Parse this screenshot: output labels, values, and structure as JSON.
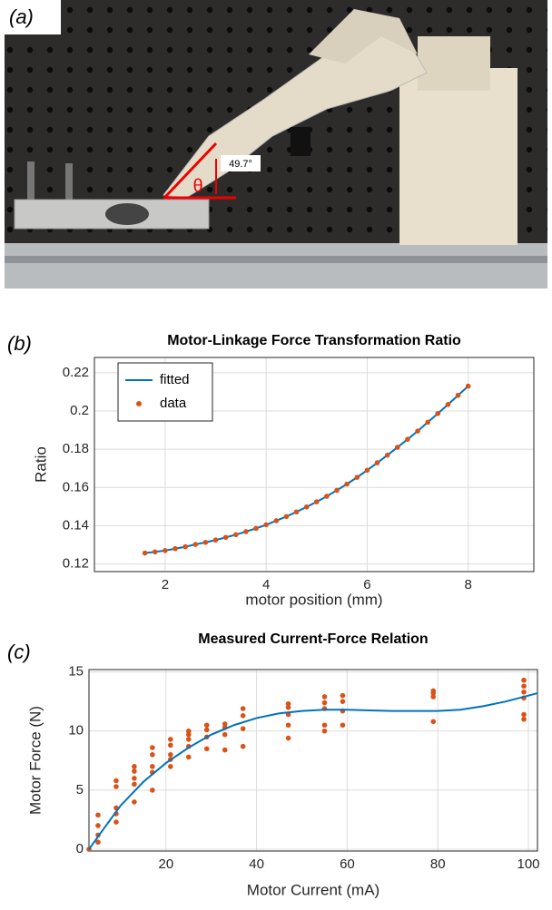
{
  "photo": {
    "panel_label": "(a)",
    "angle_label": "49.7°",
    "angle_symbol": "θ"
  },
  "chart_data": [
    {
      "type": "line",
      "panel_label": "(b)",
      "title": "Motor-Linkage Force Transformation Ratio",
      "x_label": "motor position (mm)",
      "y_label": "Ratio",
      "xlim": [
        0.6,
        9.3
      ],
      "ylim": [
        0.116,
        0.228
      ],
      "xticks": [
        2,
        4,
        6,
        8
      ],
      "yticks": [
        0.12,
        0.14,
        0.16,
        0.18,
        0.2,
        0.22
      ],
      "grid": true,
      "legend": "upper left",
      "series": [
        {
          "name": "fitted",
          "color": "#0072bd",
          "mode": "line",
          "x": [
            1.6,
            1.8,
            2.0,
            2.2,
            2.4,
            2.6,
            2.8,
            3.0,
            3.2,
            3.4,
            3.6,
            3.8,
            4.0,
            4.2,
            4.4,
            4.6,
            4.8,
            5.0,
            5.2,
            5.4,
            5.6,
            5.8,
            6.0,
            6.2,
            6.4,
            6.6,
            6.8,
            7.0,
            7.2,
            7.4,
            7.6,
            7.8,
            8.0
          ],
          "values": [
            0.1257,
            0.1263,
            0.127,
            0.128,
            0.129,
            0.1302,
            0.1313,
            0.1325,
            0.1339,
            0.1353,
            0.1369,
            0.1386,
            0.1405,
            0.1426,
            0.1448,
            0.1472,
            0.1498,
            0.1525,
            0.1554,
            0.1585,
            0.1618,
            0.1653,
            0.169,
            0.1729,
            0.1769,
            0.181,
            0.1852,
            0.1895,
            0.1941,
            0.1987,
            0.2034,
            0.2082,
            0.213
          ]
        },
        {
          "name": "data",
          "color": "#d95319",
          "mode": "markers",
          "x": [
            1.6,
            1.8,
            2.0,
            2.2,
            2.4,
            2.6,
            2.8,
            3.0,
            3.2,
            3.4,
            3.6,
            3.8,
            4.0,
            4.2,
            4.4,
            4.6,
            4.8,
            5.0,
            5.2,
            5.4,
            5.6,
            5.8,
            6.0,
            6.2,
            6.4,
            6.6,
            6.8,
            7.0,
            7.2,
            7.4,
            7.6,
            7.8,
            8.0
          ],
          "values": [
            0.1257,
            0.1263,
            0.127,
            0.128,
            0.129,
            0.1302,
            0.1313,
            0.1325,
            0.1339,
            0.1353,
            0.1369,
            0.1386,
            0.1405,
            0.1426,
            0.1448,
            0.1472,
            0.1498,
            0.1525,
            0.1554,
            0.1585,
            0.1618,
            0.1653,
            0.169,
            0.1729,
            0.1769,
            0.181,
            0.1852,
            0.1895,
            0.1941,
            0.1987,
            0.2034,
            0.2082,
            0.213
          ]
        }
      ]
    },
    {
      "type": "line",
      "panel_label": "(c)",
      "title": "Measured Current-Force Relation",
      "x_label": "Motor Current (mA)",
      "y_label": "Motor Force (N)",
      "xlim": [
        3,
        102
      ],
      "ylim": [
        -0.15,
        15.2
      ],
      "xticks": [
        20,
        40,
        60,
        80,
        100
      ],
      "yticks": [
        0,
        5,
        10,
        15
      ],
      "grid": true,
      "series": [
        {
          "color": "#d95319",
          "mode": "markers",
          "x": [
            3,
            5,
            5,
            5,
            5,
            9,
            9,
            9,
            9,
            9,
            13,
            13,
            13,
            13,
            13,
            17,
            17,
            17,
            17,
            17,
            21,
            21,
            21,
            21,
            21,
            25,
            25,
            25,
            25,
            25,
            29,
            29,
            29,
            29,
            33,
            33,
            33,
            33,
            37,
            37,
            37,
            37,
            47,
            47,
            47,
            47,
            47,
            55,
            55,
            55,
            55,
            55,
            59,
            59,
            59,
            59,
            79,
            79,
            79,
            79,
            99,
            99,
            99,
            99,
            99,
            99
          ],
          "values": [
            0,
            0.6,
            1.2,
            2.0,
            2.9,
            2.3,
            3.0,
            3.5,
            5.3,
            5.8,
            4.0,
            5.5,
            6.0,
            6.6,
            7.0,
            5.0,
            6.5,
            7.0,
            8.0,
            8.6,
            7.0,
            7.6,
            8.0,
            8.8,
            9.3,
            7.8,
            8.7,
            9.3,
            9.7,
            10.0,
            8.5,
            9.5,
            10.1,
            10.5,
            8.4,
            9.7,
            10.3,
            10.6,
            8.7,
            10.2,
            11.3,
            11.9,
            9.4,
            10.5,
            11.4,
            12.0,
            12.3,
            10.0,
            10.5,
            11.9,
            12.4,
            12.9,
            10.5,
            11.7,
            12.5,
            13.0,
            10.8,
            12.9,
            13.2,
            13.4,
            11.0,
            11.4,
            12.8,
            13.3,
            13.8,
            14.3
          ]
        },
        {
          "color": "#0072bd",
          "mode": "line",
          "x": [
            3,
            6,
            10,
            15,
            20,
            25,
            30,
            35,
            40,
            45,
            50,
            55,
            60,
            65,
            70,
            75,
            80,
            85,
            90,
            95,
            102
          ],
          "values": [
            0,
            1.6,
            3.7,
            5.7,
            7.3,
            8.6,
            9.7,
            10.5,
            11.1,
            11.5,
            11.7,
            11.8,
            11.8,
            11.75,
            11.7,
            11.7,
            11.7,
            11.8,
            12.1,
            12.5,
            13.2
          ]
        }
      ]
    }
  ]
}
